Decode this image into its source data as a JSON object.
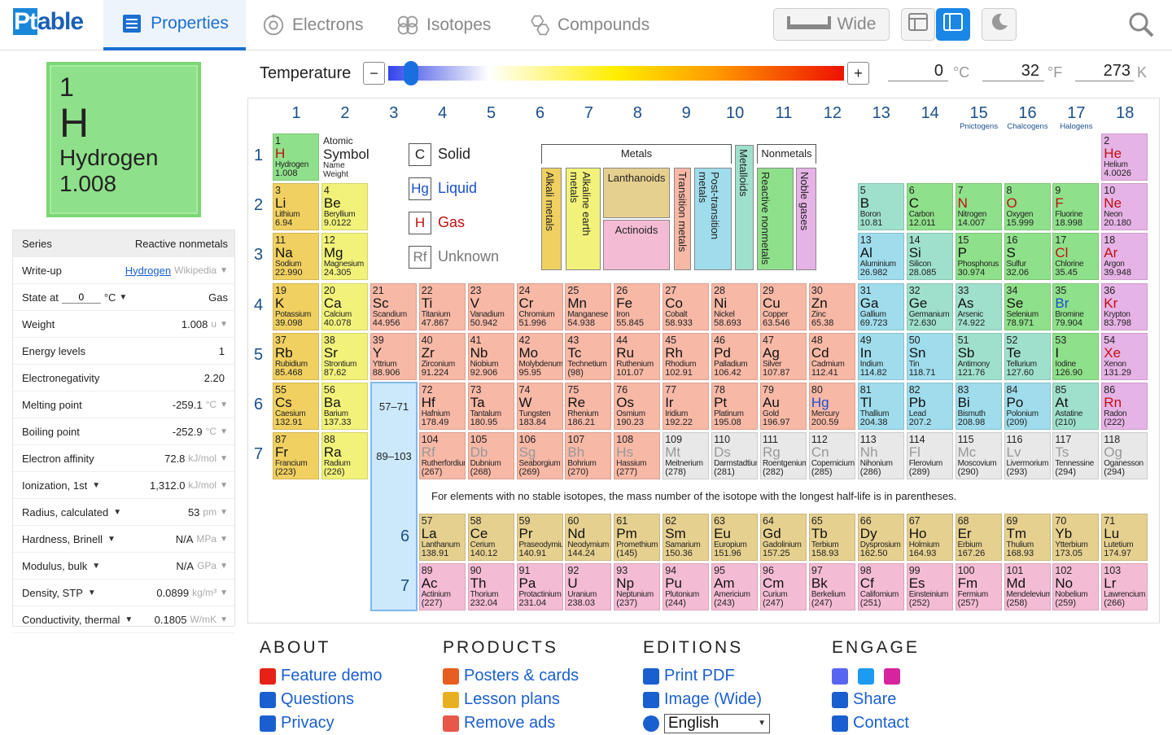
{
  "header": {
    "logo_pt": "Pt",
    "logo_rest": "able",
    "tabs": [
      {
        "label": "Properties"
      },
      {
        "label": "Electrons"
      },
      {
        "label": "Isotopes"
      },
      {
        "label": "Compounds"
      }
    ],
    "wide_label": "Wide"
  },
  "card": {
    "number": "1",
    "symbol": "H",
    "name": "Hydrogen",
    "weight": "1.008"
  },
  "sidebar": {
    "series_label": "Series",
    "series_value": "Reactive nonmetals",
    "writeup_label": "Write-up",
    "writeup_link": "Hydrogen",
    "writeup_source": "Wikipedia",
    "state_label": "State at",
    "state_temp": "0",
    "state_unit": "°C",
    "state_value": "Gas",
    "rows": [
      {
        "label": "Weight",
        "value": "1.008",
        "unit": "u"
      },
      {
        "label": "Energy levels",
        "value": "1",
        "unit": ""
      },
      {
        "label": "Electronegativity",
        "value": "2.20",
        "unit": ""
      },
      {
        "label": "Melting point",
        "value": "-259.1",
        "unit": "°C"
      },
      {
        "label": "Boiling point",
        "value": "-252.9",
        "unit": "°C"
      },
      {
        "label": "Electron affinity",
        "value": "72.8",
        "unit": "kJ/mol"
      },
      {
        "label": "Ionization, 1st",
        "value": "1,312.0",
        "unit": "kJ/mol"
      },
      {
        "label": "Radius, calculated",
        "value": "53",
        "unit": "pm"
      },
      {
        "label": "Hardness, Brinell",
        "value": "N/A",
        "unit": "MPa"
      },
      {
        "label": "Modulus, bulk",
        "value": "N/A",
        "unit": "GPa"
      },
      {
        "label": "Density, STP",
        "value": "0.0899",
        "unit": "kg/m³"
      },
      {
        "label": "Conductivity, thermal",
        "value": "0.1805",
        "unit": "W/mK"
      }
    ]
  },
  "temperature": {
    "label": "Temperature",
    "celsius": "0",
    "celsius_unit": "°C",
    "fahrenheit": "32",
    "fahrenheit_unit": "°F",
    "kelvin": "273",
    "kelvin_unit": "K",
    "minus": "−",
    "plus": "+",
    "slider_fraction": 0.05
  },
  "groups": [
    "1",
    "2",
    "3",
    "4",
    "5",
    "6",
    "7",
    "8",
    "9",
    "10",
    "11",
    "12",
    "13",
    "14",
    "15",
    "16",
    "17",
    "18"
  ],
  "group_names": {
    "15": "Pnictogens",
    "16": "Chalcogens",
    "17": "Halogens"
  },
  "periods": [
    "1",
    "2",
    "3",
    "4",
    "5",
    "6",
    "7"
  ],
  "key": {
    "atomic": "Atomic",
    "symbol": "Symbol",
    "name": "Name",
    "weight": "Weight"
  },
  "states": [
    {
      "sym": "C",
      "label": "Solid",
      "color": "#222"
    },
    {
      "sym": "Hg",
      "label": "Liquid",
      "color": "#1a4fd0"
    },
    {
      "sym": "H",
      "label": "Gas",
      "color": "#c01010"
    },
    {
      "sym": "Rf",
      "label": "Unknown",
      "color": "#777"
    }
  ],
  "legend": {
    "metals": "Metals",
    "nonmetals": "Nonmetals",
    "alkali": "Alkali metals",
    "alkaline": "Alkaline earth metals",
    "lanthanoids": "Lanthanoids",
    "actinoids": "Actinoids",
    "transition": "Transition metals",
    "post": "Post-transition metals",
    "metalloids": "Metalloids",
    "reactive": "Reactive nonmetals",
    "noble": "Noble gases"
  },
  "series_colors": {
    "alk": "#f0d060",
    "ae": "#f2f27a",
    "tm": "#f7b8a6",
    "pt": "#9fdcec",
    "md": "#9fe0cc",
    "nm": "#8fe08a",
    "ng": "#e6b3e6",
    "la": "#e6d08f",
    "ac": "#f4bcd4",
    "un": "#e8e8e8"
  },
  "lanth_range": "57–71",
  "act_range": "89–103",
  "lanth_period": "6",
  "act_period": "7",
  "note": "For elements with no stable isotopes, the mass number of the isotope with the longest half-life is in parentheses.",
  "elements": [
    [
      "1",
      "H",
      "Hydrogen",
      "1.008",
      1,
      1,
      "nm",
      "g"
    ],
    [
      "2",
      "He",
      "Helium",
      "4.0026",
      18,
      1,
      "ng",
      "g"
    ],
    [
      "3",
      "Li",
      "Lithium",
      "6.94",
      1,
      2,
      "alk",
      "s"
    ],
    [
      "4",
      "Be",
      "Beryllium",
      "9.0122",
      2,
      2,
      "ae",
      "s"
    ],
    [
      "5",
      "B",
      "Boron",
      "10.81",
      13,
      2,
      "md",
      "s"
    ],
    [
      "6",
      "C",
      "Carbon",
      "12.011",
      14,
      2,
      "nm",
      "s"
    ],
    [
      "7",
      "N",
      "Nitrogen",
      "14.007",
      15,
      2,
      "nm",
      "g"
    ],
    [
      "8",
      "O",
      "Oxygen",
      "15.999",
      16,
      2,
      "nm",
      "g"
    ],
    [
      "9",
      "F",
      "Fluorine",
      "18.998",
      17,
      2,
      "nm",
      "g"
    ],
    [
      "10",
      "Ne",
      "Neon",
      "20.180",
      18,
      2,
      "ng",
      "g"
    ],
    [
      "11",
      "Na",
      "Sodium",
      "22.990",
      1,
      3,
      "alk",
      "s"
    ],
    [
      "12",
      "Mg",
      "Magnesium",
      "24.305",
      2,
      3,
      "ae",
      "s"
    ],
    [
      "13",
      "Al",
      "Aluminium",
      "26.982",
      13,
      3,
      "pt",
      "s"
    ],
    [
      "14",
      "Si",
      "Silicon",
      "28.085",
      14,
      3,
      "md",
      "s"
    ],
    [
      "15",
      "P",
      "Phosphorus",
      "30.974",
      15,
      3,
      "nm",
      "s"
    ],
    [
      "16",
      "S",
      "Sulfur",
      "32.06",
      16,
      3,
      "nm",
      "s"
    ],
    [
      "17",
      "Cl",
      "Chlorine",
      "35.45",
      17,
      3,
      "nm",
      "g"
    ],
    [
      "18",
      "Ar",
      "Argon",
      "39.948",
      18,
      3,
      "ng",
      "g"
    ],
    [
      "19",
      "K",
      "Potassium",
      "39.098",
      1,
      4,
      "alk",
      "s"
    ],
    [
      "20",
      "Ca",
      "Calcium",
      "40.078",
      2,
      4,
      "ae",
      "s"
    ],
    [
      "21",
      "Sc",
      "Scandium",
      "44.956",
      3,
      4,
      "tm",
      "s"
    ],
    [
      "22",
      "Ti",
      "Titanium",
      "47.867",
      4,
      4,
      "tm",
      "s"
    ],
    [
      "23",
      "V",
      "Vanadium",
      "50.942",
      5,
      4,
      "tm",
      "s"
    ],
    [
      "24",
      "Cr",
      "Chromium",
      "51.996",
      6,
      4,
      "tm",
      "s"
    ],
    [
      "25",
      "Mn",
      "Manganese",
      "54.938",
      7,
      4,
      "tm",
      "s"
    ],
    [
      "26",
      "Fe",
      "Iron",
      "55.845",
      8,
      4,
      "tm",
      "s"
    ],
    [
      "27",
      "Co",
      "Cobalt",
      "58.933",
      9,
      4,
      "tm",
      "s"
    ],
    [
      "28",
      "Ni",
      "Nickel",
      "58.693",
      10,
      4,
      "tm",
      "s"
    ],
    [
      "29",
      "Cu",
      "Copper",
      "63.546",
      11,
      4,
      "tm",
      "s"
    ],
    [
      "30",
      "Zn",
      "Zinc",
      "65.38",
      12,
      4,
      "tm",
      "s"
    ],
    [
      "31",
      "Ga",
      "Gallium",
      "69.723",
      13,
      4,
      "pt",
      "s"
    ],
    [
      "32",
      "Ge",
      "Germanium",
      "72.630",
      14,
      4,
      "md",
      "s"
    ],
    [
      "33",
      "As",
      "Arsenic",
      "74.922",
      15,
      4,
      "md",
      "s"
    ],
    [
      "34",
      "Se",
      "Selenium",
      "78.971",
      16,
      4,
      "nm",
      "s"
    ],
    [
      "35",
      "Br",
      "Bromine",
      "79.904",
      17,
      4,
      "nm",
      "l"
    ],
    [
      "36",
      "Kr",
      "Krypton",
      "83.798",
      18,
      4,
      "ng",
      "g"
    ],
    [
      "37",
      "Rb",
      "Rubidium",
      "85.468",
      1,
      5,
      "alk",
      "s"
    ],
    [
      "38",
      "Sr",
      "Strontium",
      "87.62",
      2,
      5,
      "ae",
      "s"
    ],
    [
      "39",
      "Y",
      "Yttrium",
      "88.906",
      3,
      5,
      "tm",
      "s"
    ],
    [
      "40",
      "Zr",
      "Zirconium",
      "91.224",
      4,
      5,
      "tm",
      "s"
    ],
    [
      "41",
      "Nb",
      "Niobium",
      "92.906",
      5,
      5,
      "tm",
      "s"
    ],
    [
      "42",
      "Mo",
      "Molybdenum",
      "95.95",
      6,
      5,
      "tm",
      "s"
    ],
    [
      "43",
      "Tc",
      "Technetium",
      "(98)",
      7,
      5,
      "tm",
      "s"
    ],
    [
      "44",
      "Ru",
      "Ruthenium",
      "101.07",
      8,
      5,
      "tm",
      "s"
    ],
    [
      "45",
      "Rh",
      "Rhodium",
      "102.91",
      9,
      5,
      "tm",
      "s"
    ],
    [
      "46",
      "Pd",
      "Palladium",
      "106.42",
      10,
      5,
      "tm",
      "s"
    ],
    [
      "47",
      "Ag",
      "Silver",
      "107.87",
      11,
      5,
      "tm",
      "s"
    ],
    [
      "48",
      "Cd",
      "Cadmium",
      "112.41",
      12,
      5,
      "tm",
      "s"
    ],
    [
      "49",
      "In",
      "Indium",
      "114.82",
      13,
      5,
      "pt",
      "s"
    ],
    [
      "50",
      "Sn",
      "Tin",
      "118.71",
      14,
      5,
      "pt",
      "s"
    ],
    [
      "51",
      "Sb",
      "Antimony",
      "121.76",
      15,
      5,
      "md",
      "s"
    ],
    [
      "52",
      "Te",
      "Tellurium",
      "127.60",
      16,
      5,
      "md",
      "s"
    ],
    [
      "53",
      "I",
      "Iodine",
      "126.90",
      17,
      5,
      "nm",
      "s"
    ],
    [
      "54",
      "Xe",
      "Xenon",
      "131.29",
      18,
      5,
      "ng",
      "g"
    ],
    [
      "55",
      "Cs",
      "Caesium",
      "132.91",
      1,
      6,
      "alk",
      "s"
    ],
    [
      "56",
      "Ba",
      "Barium",
      "137.33",
      2,
      6,
      "ae",
      "s"
    ],
    [
      "72",
      "Hf",
      "Hafnium",
      "178.49",
      4,
      6,
      "tm",
      "s"
    ],
    [
      "73",
      "Ta",
      "Tantalum",
      "180.95",
      5,
      6,
      "tm",
      "s"
    ],
    [
      "74",
      "W",
      "Tungsten",
      "183.84",
      6,
      6,
      "tm",
      "s"
    ],
    [
      "75",
      "Re",
      "Rhenium",
      "186.21",
      7,
      6,
      "tm",
      "s"
    ],
    [
      "76",
      "Os",
      "Osmium",
      "190.23",
      8,
      6,
      "tm",
      "s"
    ],
    [
      "77",
      "Ir",
      "Iridium",
      "192.22",
      9,
      6,
      "tm",
      "s"
    ],
    [
      "78",
      "Pt",
      "Platinum",
      "195.08",
      10,
      6,
      "tm",
      "s"
    ],
    [
      "79",
      "Au",
      "Gold",
      "196.97",
      11,
      6,
      "tm",
      "s"
    ],
    [
      "80",
      "Hg",
      "Mercury",
      "200.59",
      12,
      6,
      "tm",
      "l"
    ],
    [
      "81",
      "Tl",
      "Thallium",
      "204.38",
      13,
      6,
      "pt",
      "s"
    ],
    [
      "82",
      "Pb",
      "Lead",
      "207.2",
      14,
      6,
      "pt",
      "s"
    ],
    [
      "83",
      "Bi",
      "Bismuth",
      "208.98",
      15,
      6,
      "pt",
      "s"
    ],
    [
      "84",
      "Po",
      "Polonium",
      "(209)",
      16,
      6,
      "pt",
      "s"
    ],
    [
      "85",
      "At",
      "Astatine",
      "(210)",
      17,
      6,
      "md",
      "s"
    ],
    [
      "86",
      "Rn",
      "Radon",
      "(222)",
      18,
      6,
      "ng",
      "g"
    ],
    [
      "87",
      "Fr",
      "Francium",
      "(223)",
      1,
      7,
      "alk",
      "s"
    ],
    [
      "88",
      "Ra",
      "Radium",
      "(226)",
      2,
      7,
      "ae",
      "s"
    ],
    [
      "104",
      "Rf",
      "Rutherfordium",
      "(267)",
      4,
      7,
      "tm",
      "u"
    ],
    [
      "105",
      "Db",
      "Dubnium",
      "(268)",
      5,
      7,
      "tm",
      "u"
    ],
    [
      "106",
      "Sg",
      "Seaborgium",
      "(269)",
      6,
      7,
      "tm",
      "u"
    ],
    [
      "107",
      "Bh",
      "Bohrium",
      "(270)",
      7,
      7,
      "tm",
      "u"
    ],
    [
      "108",
      "Hs",
      "Hassium",
      "(277)",
      8,
      7,
      "tm",
      "u"
    ],
    [
      "109",
      "Mt",
      "Meitnerium",
      "(278)",
      9,
      7,
      "un",
      "u"
    ],
    [
      "110",
      "Ds",
      "Darmstadtium",
      "(281)",
      10,
      7,
      "un",
      "u"
    ],
    [
      "111",
      "Rg",
      "Roentgenium",
      "(282)",
      11,
      7,
      "un",
      "u"
    ],
    [
      "112",
      "Cn",
      "Copernicium",
      "(285)",
      12,
      7,
      "un",
      "u"
    ],
    [
      "113",
      "Nh",
      "Nihonium",
      "(286)",
      13,
      7,
      "un",
      "u"
    ],
    [
      "114",
      "Fl",
      "Flerovium",
      "(289)",
      14,
      7,
      "un",
      "u"
    ],
    [
      "115",
      "Mc",
      "Moscovium",
      "(290)",
      15,
      7,
      "un",
      "u"
    ],
    [
      "116",
      "Lv",
      "Livermorium",
      "(293)",
      16,
      7,
      "un",
      "u"
    ],
    [
      "117",
      "Ts",
      "Tennessine",
      "(294)",
      17,
      7,
      "un",
      "u"
    ],
    [
      "118",
      "Og",
      "Oganesson",
      "(294)",
      18,
      7,
      "un",
      "u"
    ],
    [
      "57",
      "La",
      "Lanthanum",
      "138.91",
      4,
      8,
      "la",
      "s"
    ],
    [
      "58",
      "Ce",
      "Cerium",
      "140.12",
      5,
      8,
      "la",
      "s"
    ],
    [
      "59",
      "Pr",
      "Praseodymium",
      "140.91",
      6,
      8,
      "la",
      "s"
    ],
    [
      "60",
      "Nd",
      "Neodymium",
      "144.24",
      7,
      8,
      "la",
      "s"
    ],
    [
      "61",
      "Pm",
      "Promethium",
      "(145)",
      8,
      8,
      "la",
      "s"
    ],
    [
      "62",
      "Sm",
      "Samarium",
      "150.36",
      9,
      8,
      "la",
      "s"
    ],
    [
      "63",
      "Eu",
      "Europium",
      "151.96",
      10,
      8,
      "la",
      "s"
    ],
    [
      "64",
      "Gd",
      "Gadolinium",
      "157.25",
      11,
      8,
      "la",
      "s"
    ],
    [
      "65",
      "Tb",
      "Terbium",
      "158.93",
      12,
      8,
      "la",
      "s"
    ],
    [
      "66",
      "Dy",
      "Dysprosium",
      "162.50",
      13,
      8,
      "la",
      "s"
    ],
    [
      "67",
      "Ho",
      "Holmium",
      "164.93",
      14,
      8,
      "la",
      "s"
    ],
    [
      "68",
      "Er",
      "Erbium",
      "167.26",
      15,
      8,
      "la",
      "s"
    ],
    [
      "69",
      "Tm",
      "Thulium",
      "168.93",
      16,
      8,
      "la",
      "s"
    ],
    [
      "70",
      "Yb",
      "Ytterbium",
      "173.05",
      17,
      8,
      "la",
      "s"
    ],
    [
      "71",
      "Lu",
      "Lutetium",
      "174.97",
      18,
      8,
      "la",
      "s"
    ],
    [
      "89",
      "Ac",
      "Actinium",
      "(227)",
      4,
      9,
      "ac",
      "s"
    ],
    [
      "90",
      "Th",
      "Thorium",
      "232.04",
      5,
      9,
      "ac",
      "s"
    ],
    [
      "91",
      "Pa",
      "Protactinium",
      "231.04",
      6,
      9,
      "ac",
      "s"
    ],
    [
      "92",
      "U",
      "Uranium",
      "238.03",
      7,
      9,
      "ac",
      "s"
    ],
    [
      "93",
      "Np",
      "Neptunium",
      "(237)",
      8,
      9,
      "ac",
      "s"
    ],
    [
      "94",
      "Pu",
      "Plutonium",
      "(244)",
      9,
      9,
      "ac",
      "s"
    ],
    [
      "95",
      "Am",
      "Americium",
      "(243)",
      10,
      9,
      "ac",
      "s"
    ],
    [
      "96",
      "Cm",
      "Curium",
      "(247)",
      11,
      9,
      "ac",
      "s"
    ],
    [
      "97",
      "Bk",
      "Berkelium",
      "(247)",
      12,
      9,
      "ac",
      "s"
    ],
    [
      "98",
      "Cf",
      "Californium",
      "(251)",
      13,
      9,
      "ac",
      "s"
    ],
    [
      "99",
      "Es",
      "Einsteinium",
      "(252)",
      14,
      9,
      "ac",
      "s"
    ],
    [
      "100",
      "Fm",
      "Fermium",
      "(257)",
      15,
      9,
      "ac",
      "s"
    ],
    [
      "101",
      "Md",
      "Mendelevium",
      "(258)",
      16,
      9,
      "ac",
      "s"
    ],
    [
      "102",
      "No",
      "Nobelium",
      "(259)",
      17,
      9,
      "ac",
      "s"
    ],
    [
      "103",
      "Lr",
      "Lawrencium",
      "(266)",
      18,
      9,
      "ac",
      "s"
    ]
  ],
  "footer": {
    "cols": [
      {
        "head": "ABOUT",
        "links": [
          {
            "label": "Feature demo",
            "icon": "youtube-icon",
            "color": "#e62117"
          },
          {
            "label": "Questions",
            "icon": "question-icon",
            "color": "#1a5fd0"
          },
          {
            "label": "Privacy",
            "icon": "eye-slash-icon",
            "color": "#1a5fd0"
          }
        ]
      },
      {
        "head": "PRODUCTS",
        "links": [
          {
            "label": "Posters & cards",
            "icon": "etsy-icon",
            "color": "#e85d20"
          },
          {
            "label": "Lesson plans",
            "icon": "layers-icon",
            "color": "#e6b020"
          },
          {
            "label": "Remove ads",
            "icon": "patreon-icon",
            "color": "#e8584a"
          }
        ]
      },
      {
        "head": "EDITIONS",
        "links": [
          {
            "label": "Print PDF",
            "icon": "printer-icon",
            "color": "#1a5fd0"
          },
          {
            "label": "Image (Wide)",
            "icon": "image-icon",
            "color": "#1a5fd0"
          }
        ],
        "language": "English"
      },
      {
        "head": "ENGAGE",
        "links": [
          {
            "label": "Share",
            "icon": "share-icon",
            "color": "#1a5fd0"
          },
          {
            "label": "Contact",
            "icon": "mail-icon",
            "color": "#1a5fd0"
          }
        ]
      }
    ]
  }
}
